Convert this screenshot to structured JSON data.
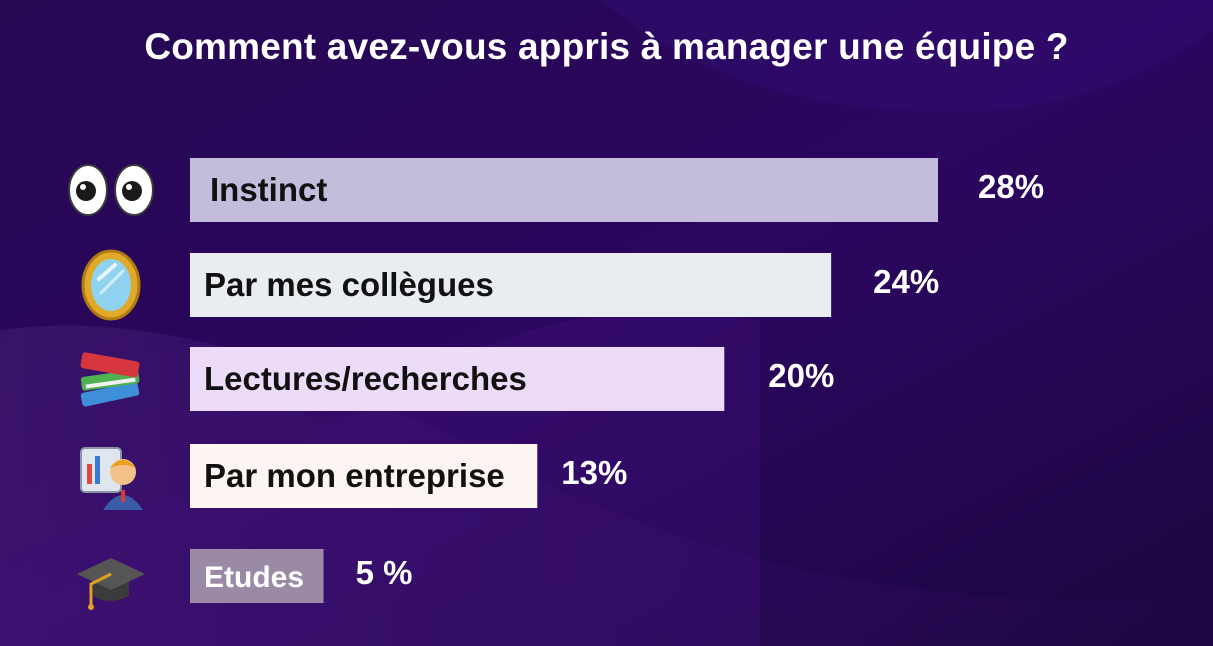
{
  "chart_data": {
    "type": "bar",
    "orientation": "horizontal",
    "title": "Comment avez-vous appris à manager une équipe ?",
    "categories": [
      "Instinct",
      "Par mes collègues",
      "Lectures/recherches",
      "Par mon entreprise",
      "Etudes"
    ],
    "values": [
      28,
      24,
      20,
      13,
      5
    ],
    "value_labels": [
      "28%",
      "24%",
      "20%",
      "13%",
      "5 %"
    ],
    "icons": [
      "eyes-icon",
      "mirror-icon",
      "books-icon",
      "teacher-icon",
      "graduation-cap-icon"
    ],
    "colors": [
      "#c3bddb",
      "#e9edf1",
      "#ecdcfa",
      "#fcf5f1",
      "#9a8aa6"
    ],
    "xlim": [
      0,
      28
    ],
    "grid": false,
    "legend": "none"
  }
}
